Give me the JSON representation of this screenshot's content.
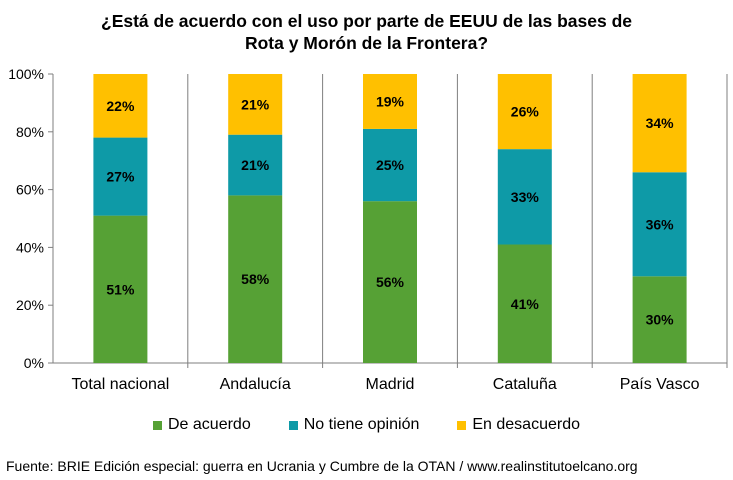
{
  "chart_data": {
    "type": "bar",
    "stacked": true,
    "title_lines": [
      "¿Está de acuerdo con el uso por parte de EEUU de las bases de",
      "Rota y Morón de la Frontera?"
    ],
    "categories": [
      "Total nacional",
      "Andalucía",
      "Madrid",
      "Cataluña",
      "País Vasco"
    ],
    "series": [
      {
        "name": "De acuerdo",
        "values": [
          51,
          58,
          56,
          41,
          30
        ],
        "color": "#56A135"
      },
      {
        "name": "No tiene opinión",
        "values": [
          27,
          21,
          25,
          33,
          36
        ],
        "color": "#0E9AA7"
      },
      {
        "name": "En desacuerdo",
        "values": [
          22,
          21,
          19,
          26,
          34
        ],
        "color": "#FFC000"
      }
    ],
    "value_labels": [
      [
        "51%",
        "58%",
        "56%",
        "41%",
        "30%"
      ],
      [
        "27%",
        "21%",
        "25%",
        "33%",
        "36%"
      ],
      [
        "22%",
        "21%",
        "19%",
        "26%",
        "34%"
      ]
    ],
    "yticks": [
      "0%",
      "20%",
      "40%",
      "60%",
      "80%",
      "100%"
    ],
    "ylim": [
      0,
      100
    ],
    "grid": false,
    "legend_position": "bottom"
  },
  "source": "Fuente: BRIE Edición especial: guerra en Ucrania y Cumbre de la OTAN / www.realinstitutoelcano.org"
}
